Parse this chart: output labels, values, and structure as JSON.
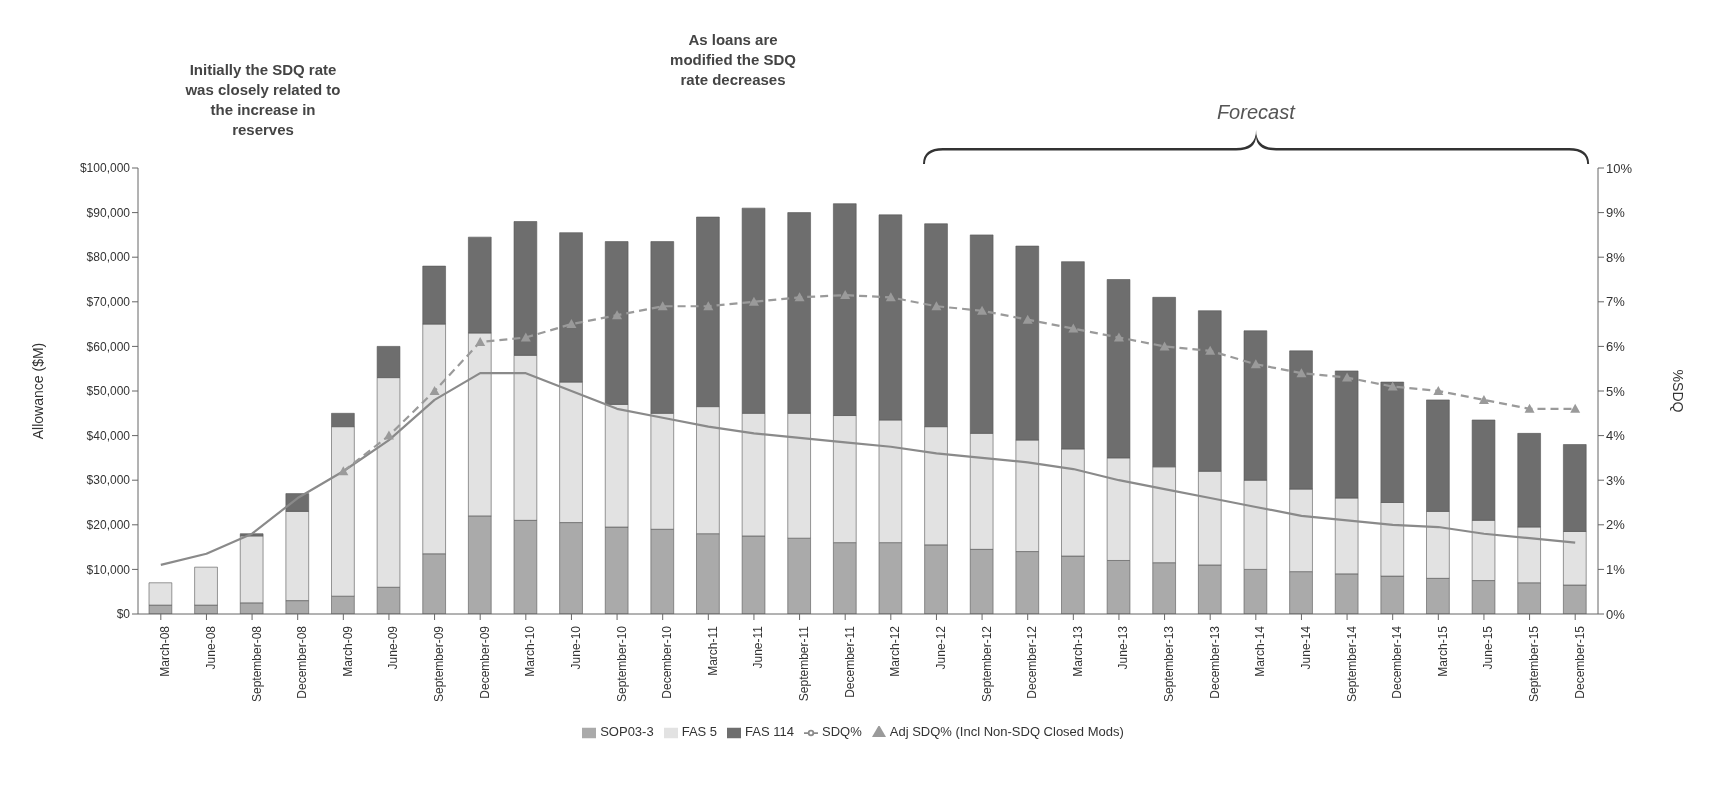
{
  "chart_data": {
    "type": "bar",
    "stacked": true,
    "ylabel": "Allowance ($M)",
    "y2label": "%SDQ",
    "annotations": [
      "Initially the SDQ rate was closely related to the increase in reserves",
      "As loans are modified the SDQ rate decreases",
      "Forecast"
    ],
    "categories": [
      "March-08",
      "June-08",
      "September-08",
      "December-08",
      "March-09",
      "June-09",
      "September-09",
      "December-09",
      "March-10",
      "June-10",
      "September-10",
      "December-10",
      "March-11",
      "June-11",
      "September-11",
      "December-11",
      "March-12",
      "June-12",
      "September-12",
      "December-12",
      "March-13",
      "June-13",
      "September-13",
      "December-13",
      "March-14",
      "June-14",
      "September-14",
      "December-14",
      "March-15",
      "June-15",
      "September-15",
      "December-15"
    ],
    "series": [
      {
        "name": "SOP03-3",
        "color": "#aaaaaa",
        "values": [
          2000,
          2000,
          2500,
          3000,
          4000,
          6000,
          13500,
          22000,
          21000,
          20500,
          19500,
          19000,
          18000,
          17500,
          17000,
          16000,
          16000,
          15500,
          14500,
          14000,
          13000,
          12000,
          11500,
          11000,
          10000,
          9500,
          9000,
          8500,
          8000,
          7500,
          7000,
          6500
        ]
      },
      {
        "name": "FAS 5",
        "color": "#e2e2e2",
        "values": [
          5000,
          8500,
          15000,
          20000,
          38000,
          47000,
          51500,
          41000,
          37000,
          31500,
          27500,
          26000,
          28500,
          27500,
          28000,
          28500,
          27500,
          26500,
          26000,
          25000,
          24000,
          23000,
          21500,
          21000,
          20000,
          18500,
          17000,
          16500,
          15000,
          13500,
          12500,
          12000
        ]
      },
      {
        "name": "FAS 114",
        "color": "#6e6e6e",
        "values": [
          0,
          0,
          500,
          4000,
          3000,
          7000,
          13000,
          21500,
          30000,
          33500,
          36500,
          38500,
          42500,
          46000,
          45000,
          47500,
          46000,
          45500,
          44500,
          43500,
          42000,
          40000,
          38000,
          36000,
          33500,
          31000,
          28500,
          27000,
          25000,
          22500,
          21000,
          19500
        ]
      },
      {
        "name": "SDQ%",
        "type": "line",
        "axis": "y2",
        "color": "#8a8a8a",
        "marker": "none",
        "line_style": "solid",
        "values": [
          1.1,
          1.35,
          1.8,
          2.6,
          3.2,
          3.9,
          4.8,
          5.4,
          5.4,
          5.0,
          4.6,
          4.4,
          4.2,
          4.05,
          3.95,
          3.85,
          3.75,
          3.6,
          3.5,
          3.4,
          3.25,
          3.0,
          2.8,
          2.6,
          2.4,
          2.2,
          2.1,
          2.0,
          1.95,
          1.8,
          1.7,
          1.6
        ]
      },
      {
        "name": "Adj SDQ% (Incl Non-SDQ Closed Mods)",
        "type": "line",
        "axis": "y2",
        "color": "#9a9a9a",
        "marker": "triangle",
        "line_style": "dashed",
        "values": [
          null,
          null,
          null,
          null,
          3.2,
          4.0,
          5.0,
          6.1,
          6.2,
          6.5,
          6.7,
          6.9,
          6.9,
          7.0,
          7.1,
          7.15,
          7.1,
          6.9,
          6.8,
          6.6,
          6.4,
          6.2,
          6.0,
          5.9,
          5.6,
          5.4,
          5.3,
          5.1,
          5.0,
          4.8,
          4.6,
          4.6
        ]
      }
    ],
    "ylim": [
      0,
      100000
    ],
    "yticks": [
      {
        "value": 0,
        "label": "$0"
      },
      {
        "value": 10000,
        "label": "$10,000"
      },
      {
        "value": 20000,
        "label": "$20,000"
      },
      {
        "value": 30000,
        "label": "$30,000"
      },
      {
        "value": 40000,
        "label": "$40,000"
      },
      {
        "value": 50000,
        "label": "$50,000"
      },
      {
        "value": 60000,
        "label": "$60,000"
      },
      {
        "value": 70000,
        "label": "$70,000"
      },
      {
        "value": 80000,
        "label": "$80,000"
      },
      {
        "value": 90000,
        "label": "$90,000"
      },
      {
        "value": 100000,
        "label": "$100,000"
      }
    ],
    "y2lim": [
      0,
      10
    ],
    "y2ticks": [
      {
        "value": 0,
        "label": "0%"
      },
      {
        "value": 1,
        "label": "1%"
      },
      {
        "value": 2,
        "label": "2%"
      },
      {
        "value": 3,
        "label": "3%"
      },
      {
        "value": 4,
        "label": "4%"
      },
      {
        "value": 5,
        "label": "5%"
      },
      {
        "value": 6,
        "label": "6%"
      },
      {
        "value": 7,
        "label": "7%"
      },
      {
        "value": 8,
        "label": "8%"
      },
      {
        "value": 9,
        "label": "9%"
      },
      {
        "value": 10,
        "label": "10%"
      }
    ],
    "grid": false,
    "legend": "bottom"
  }
}
